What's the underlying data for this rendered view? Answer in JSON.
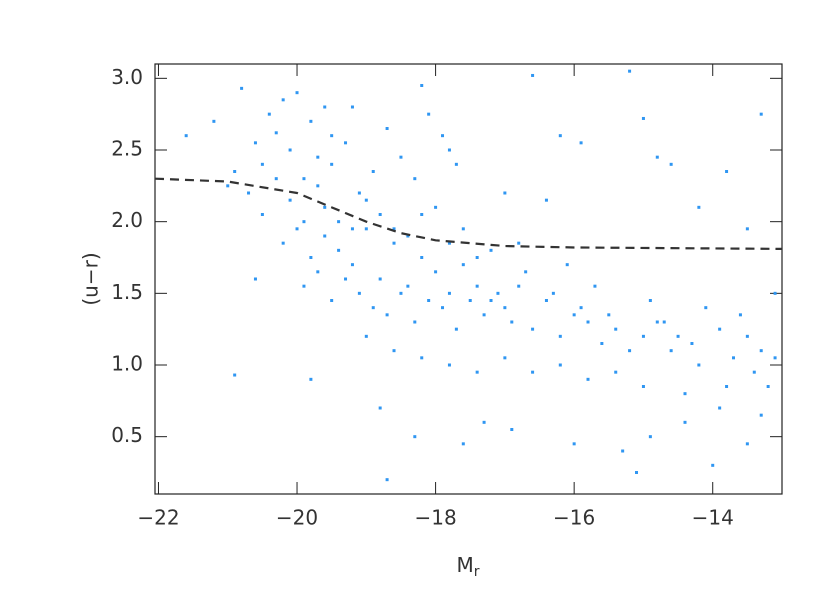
{
  "chart_data": {
    "type": "scatter",
    "xlabel": {
      "text": "M",
      "subscript": "r"
    },
    "ylabel": "(u−r)",
    "xlim": [
      -22.05,
      -13.0
    ],
    "ylim": [
      0.1,
      3.1
    ],
    "xticks": [
      {
        "value": -22,
        "label": "−22"
      },
      {
        "value": -20,
        "label": "−20"
      },
      {
        "value": -18,
        "label": "−18"
      },
      {
        "value": -16,
        "label": "−16"
      },
      {
        "value": -14,
        "label": "−14"
      }
    ],
    "yticks": [
      {
        "value": 0.5,
        "label": "0.5"
      },
      {
        "value": 1,
        "label": "1.0"
      },
      {
        "value": 1.5,
        "label": "1.5"
      },
      {
        "value": 2,
        "label": "2.0"
      },
      {
        "value": 2.5,
        "label": "2.5"
      },
      {
        "value": 3,
        "label": "3.0"
      }
    ],
    "color": "#2f96f2",
    "x": [
      -21.6,
      -21.2,
      -20.9,
      -20.8,
      -20.6,
      -20.5,
      -20.4,
      -20.3,
      -20.2,
      -20.1,
      -20.0,
      -19.9,
      -19.8,
      -19.7,
      -19.6,
      -19.5,
      -20.7,
      -20.5,
      -20.3,
      -20.1,
      -19.9,
      -19.7,
      -19.5,
      -19.3,
      -19.1,
      -18.9,
      -18.7,
      -18.5,
      -18.3,
      -18.1,
      -17.9,
      -17.7,
      -20.2,
      -20.0,
      -19.8,
      -19.6,
      -19.4,
      -19.2,
      -19.0,
      -18.8,
      -18.6,
      -18.4,
      -18.2,
      -18.0,
      -17.8,
      -17.6,
      -17.4,
      -17.2,
      -19.9,
      -19.7,
      -19.5,
      -19.3,
      -19.1,
      -18.9,
      -18.7,
      -18.5,
      -18.3,
      -18.1,
      -17.9,
      -17.7,
      -17.5,
      -17.3,
      -17.1,
      -16.9,
      -17.0,
      -16.8,
      -16.6,
      -16.4,
      -16.2,
      -16.0,
      -15.8,
      -15.6,
      -15.4,
      -15.2,
      -15.0,
      -14.8,
      -16.7,
      -16.3,
      -15.9,
      -15.5,
      -19.0,
      -18.6,
      -18.2,
      -17.8,
      -17.4,
      -17.0,
      -16.6,
      -16.2,
      -15.8,
      -15.4,
      -15.0,
      -14.6,
      -14.2,
      -13.8,
      -13.4,
      -13.1,
      -20.9,
      -19.8,
      -18.8,
      -18.3,
      -17.6,
      -17.3,
      -16.9,
      -16.0,
      -15.3,
      -15.1,
      -14.9,
      -14.4,
      -14.0,
      -13.5,
      -13.3,
      -18.7,
      -16.6,
      -16.2,
      -15.9,
      -15.2,
      -15.0,
      -14.8,
      -14.6,
      -14.2,
      -13.8,
      -13.5,
      -13.3,
      -17.0,
      -16.4,
      -18.2,
      -17.8,
      -19.2,
      -14.7,
      -14.5,
      -14.3,
      -14.1,
      -13.9,
      -13.7,
      -13.5,
      -13.3,
      -13.1,
      -14.9,
      -14.4,
      -13.9,
      -13.6,
      -13.2,
      -15.7,
      -16.1,
      -19.6,
      -19.2,
      -18.8,
      -18.4,
      -18.0,
      -17.6,
      -17.2,
      -16.8,
      -19.4,
      -19.0,
      -18.6,
      -18.2,
      -17.8,
      -17.4,
      -21.0,
      -20.6
    ],
    "y": [
      2.6,
      2.7,
      2.35,
      2.93,
      2.55,
      2.4,
      2.75,
      2.62,
      2.85,
      2.5,
      2.9,
      2.3,
      2.7,
      2.45,
      2.8,
      2.6,
      2.2,
      2.05,
      2.3,
      2.15,
      2.0,
      2.25,
      2.4,
      2.55,
      2.2,
      2.35,
      2.65,
      2.45,
      2.3,
      2.75,
      2.6,
      2.4,
      1.85,
      1.95,
      1.75,
      1.9,
      1.8,
      1.7,
      1.95,
      1.6,
      1.85,
      1.55,
      1.75,
      1.65,
      1.5,
      1.7,
      1.55,
      1.45,
      1.55,
      1.65,
      1.45,
      1.6,
      1.5,
      1.4,
      1.35,
      1.5,
      1.3,
      1.45,
      1.4,
      1.25,
      1.45,
      1.35,
      1.5,
      1.3,
      1.4,
      1.55,
      1.25,
      1.45,
      1.2,
      1.35,
      1.3,
      1.15,
      1.25,
      1.1,
      1.2,
      1.3,
      1.65,
      1.5,
      1.4,
      1.35,
      1.2,
      1.1,
      1.05,
      1.0,
      0.95,
      1.05,
      0.95,
      1.0,
      0.9,
      0.95,
      0.85,
      1.1,
      1.0,
      0.85,
      0.95,
      1.05,
      0.93,
      0.9,
      0.7,
      0.5,
      0.45,
      0.6,
      0.55,
      0.45,
      0.4,
      0.25,
      0.5,
      0.6,
      0.3,
      0.45,
      0.65,
      0.2,
      3.02,
      2.6,
      2.55,
      3.05,
      2.72,
      2.45,
      2.4,
      2.1,
      2.35,
      1.95,
      2.75,
      2.2,
      2.15,
      2.95,
      2.5,
      2.8,
      1.3,
      1.2,
      1.15,
      1.4,
      1.25,
      1.05,
      1.2,
      1.1,
      1.5,
      1.45,
      0.8,
      0.7,
      1.35,
      0.85,
      1.55,
      1.7,
      2.1,
      1.95,
      2.05,
      1.9,
      2.1,
      1.95,
      1.8,
      1.85,
      2.0,
      2.15,
      1.95,
      2.05,
      1.85,
      1.75,
      2.25,
      1.6
    ],
    "reference_line": {
      "color": "#333333",
      "x": [
        -22.05,
        -21.0,
        -20.0,
        -19.5,
        -19.0,
        -18.5,
        -18.0,
        -17.0,
        -16.0,
        -13.0
      ],
      "y": [
        2.3,
        2.28,
        2.2,
        2.1,
        2.0,
        1.92,
        1.87,
        1.83,
        1.82,
        1.81
      ]
    }
  }
}
